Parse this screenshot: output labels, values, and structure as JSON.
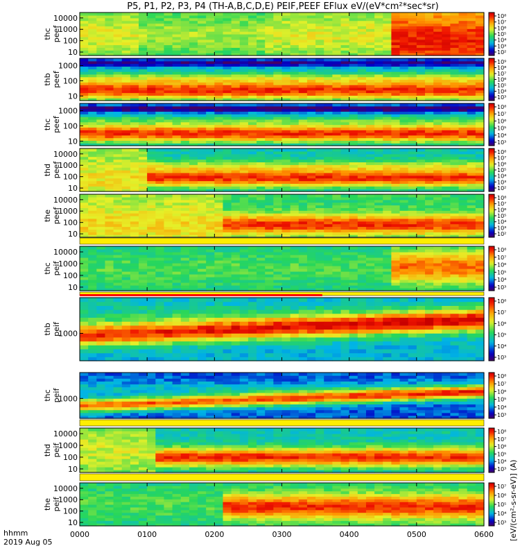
{
  "chart_data": {
    "type": "heatmap",
    "title": "P5, P1, P2, P3, P4 (TH-A,B,C,D,E) PEIF,PEEF EFlux eV/(eV*cm²*sec*sr)",
    "x": {
      "label_line1": "hhmm",
      "label_line2": "2019 Aug 05",
      "ticks": [
        "0000",
        "0100",
        "0200",
        "0300",
        "0400",
        "0500",
        "0600"
      ],
      "range_hours": [
        0,
        6
      ]
    },
    "colorbar": {
      "label": "[eV/(cm²-s-sr-eV)] (A)",
      "colormap": "rainbow",
      "scale": "log"
    },
    "panels": [
      {
        "label": [
          "thc",
          "peef"
        ],
        "y_ticks": [
          "10000",
          "1000",
          "100",
          "10"
        ],
        "y_range_eV": [
          5,
          30000
        ],
        "cbar_ticks": [
          "10⁸",
          "10⁷",
          "10⁶",
          "10⁵",
          "10⁴",
          "10³",
          "10²"
        ],
        "cbar_exp_range": [
          2,
          8
        ]
      },
      {
        "label": [
          "thb",
          "peef"
        ],
        "y_ticks": [
          "1000",
          "100",
          "10"
        ],
        "y_range_eV": [
          5,
          3000
        ],
        "cbar_ticks": [
          "10⁹",
          "10⁸",
          "10⁷",
          "10⁶",
          "10⁵",
          "10⁴",
          "10³"
        ],
        "cbar_exp_range": [
          3,
          9
        ]
      },
      {
        "label": [
          "thc",
          "peef"
        ],
        "y_ticks": [
          "1000",
          "100",
          "10"
        ],
        "y_range_eV": [
          5,
          3000
        ],
        "cbar_ticks": [
          "10⁸",
          "10⁷",
          "10⁶",
          "10⁵",
          "10⁴",
          "10³"
        ],
        "cbar_exp_range": [
          3,
          8
        ]
      },
      {
        "label": [
          "thd",
          "peef"
        ],
        "y_ticks": [
          "10000",
          "1000",
          "100",
          "10"
        ],
        "y_range_eV": [
          5,
          30000
        ],
        "cbar_ticks": [
          "10⁸",
          "10⁷",
          "10⁶",
          "10⁵",
          "10⁴",
          "10³",
          "10²"
        ],
        "cbar_exp_range": [
          2,
          8
        ]
      },
      {
        "label": [
          "the",
          "peef"
        ],
        "y_ticks": [
          "10000",
          "1000",
          "100",
          "10"
        ],
        "y_range_eV": [
          5,
          30000
        ],
        "cbar_ticks": [
          "10⁸",
          "10⁷",
          "10⁶",
          "10⁵",
          "10⁴",
          "10³",
          "10²"
        ],
        "cbar_exp_range": [
          2,
          8
        ]
      },
      {
        "label": [
          "thc",
          "peif"
        ],
        "y_ticks": [
          "10000",
          "1000",
          "100",
          "10"
        ],
        "y_range_eV": [
          5,
          30000
        ],
        "cbar_ticks": [
          "10⁸",
          "10⁷",
          "10⁶",
          "10⁵",
          "10⁴",
          "10³"
        ],
        "cbar_exp_range": [
          3,
          8
        ]
      },
      {
        "label": [
          "thb",
          "peif"
        ],
        "y_ticks": [
          "1000"
        ],
        "y_range_eV": [
          100,
          20000
        ],
        "cbar_ticks": [
          "10⁸",
          "10⁷",
          "10⁶",
          "10⁵",
          "10⁴",
          "10³"
        ],
        "cbar_exp_range": [
          3,
          8
        ]
      },
      {
        "label": [
          "thc",
          "peif"
        ],
        "y_ticks": [
          "1000"
        ],
        "y_range_eV": [
          100,
          20000
        ],
        "cbar_ticks": [
          "10⁸",
          "10⁷",
          "10⁶",
          "10⁵",
          "10⁴",
          "10³"
        ],
        "cbar_exp_range": [
          3,
          8
        ]
      },
      {
        "label": [
          "thd",
          "peif"
        ],
        "y_ticks": [
          "10000",
          "1000",
          "100",
          "10"
        ],
        "y_range_eV": [
          5,
          30000
        ],
        "cbar_ticks": [
          "10⁸",
          "10⁷",
          "10⁶",
          "10⁵",
          "10⁴",
          "10³"
        ],
        "cbar_exp_range": [
          3,
          8
        ]
      },
      {
        "label": [
          "the",
          "peif"
        ],
        "y_ticks": [
          "10000",
          "1000",
          "100",
          "10"
        ],
        "y_range_eV": [
          5,
          30000
        ],
        "cbar_ticks": [
          "10⁷",
          "10⁶",
          "10⁵",
          "10⁴",
          "10³"
        ],
        "cbar_exp_range": [
          3,
          7
        ]
      }
    ]
  }
}
